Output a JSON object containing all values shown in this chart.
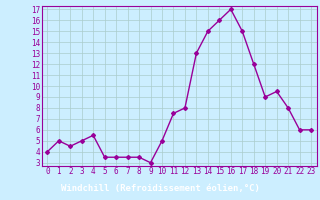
{
  "x": [
    0,
    1,
    2,
    3,
    4,
    5,
    6,
    7,
    8,
    9,
    10,
    11,
    12,
    13,
    14,
    15,
    16,
    17,
    18,
    19,
    20,
    21,
    22,
    23
  ],
  "y": [
    4,
    5,
    4.5,
    5,
    5.5,
    3.5,
    3.5,
    3.5,
    3.5,
    3,
    5,
    7.5,
    8,
    13,
    15,
    16,
    17,
    15,
    12,
    9,
    9.5,
    8,
    6,
    6
  ],
  "line_color": "#990099",
  "marker": "D",
  "marker_size": 2,
  "linewidth": 1.0,
  "xlabel": "Windchill (Refroidissement éolien,°C)",
  "xlabel_fontsize": 6.5,
  "ylim": [
    3,
    17
  ],
  "yticks": [
    3,
    4,
    5,
    6,
    7,
    8,
    9,
    10,
    11,
    12,
    13,
    14,
    15,
    16,
    17
  ],
  "xticks": [
    0,
    1,
    2,
    3,
    4,
    5,
    6,
    7,
    8,
    9,
    10,
    11,
    12,
    13,
    14,
    15,
    16,
    17,
    18,
    19,
    20,
    21,
    22,
    23
  ],
  "bg_color": "#cceeff",
  "grid_color": "#aacccc",
  "tick_color": "#990099",
  "tick_fontsize": 5.5,
  "xlabel_bg": "#660066",
  "xlabel_text_color": "#ffffff",
  "spine_color": "#990099"
}
